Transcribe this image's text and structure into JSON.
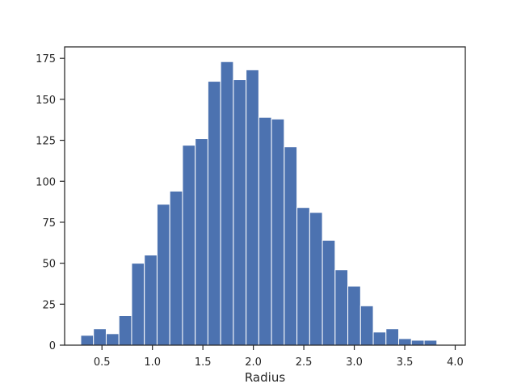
{
  "chart_data": {
    "type": "bar",
    "subtype": "histogram",
    "title": "",
    "xlabel": "Radius",
    "ylabel": "",
    "xlim": [
      0.13,
      4.1
    ],
    "ylim": [
      0,
      182
    ],
    "grid": false,
    "legend": "none",
    "bar_color": "#4c72b0",
    "x_ticks": [
      0.5,
      1.0,
      1.5,
      2.0,
      2.5,
      3.0,
      3.5,
      4.0
    ],
    "x_tick_labels": [
      "0.5",
      "1.0",
      "1.5",
      "2.0",
      "2.5",
      "3.0",
      "3.5",
      "4.0"
    ],
    "y_ticks": [
      0,
      25,
      50,
      75,
      100,
      125,
      150,
      175
    ],
    "y_tick_labels": [
      "0",
      "25",
      "50",
      "75",
      "100",
      "125",
      "150",
      "175"
    ],
    "bin_edges": [
      0.29,
      0.416,
      0.542,
      0.668,
      0.794,
      0.92,
      1.046,
      1.172,
      1.298,
      1.424,
      1.55,
      1.676,
      1.802,
      1.928,
      2.054,
      2.18,
      2.306,
      2.432,
      2.558,
      2.684,
      2.81,
      2.936,
      3.062,
      3.188,
      3.314,
      3.44,
      3.566,
      3.692,
      3.818
    ],
    "counts": [
      6,
      10,
      7,
      18,
      50,
      55,
      86,
      94,
      122,
      126,
      161,
      173,
      162,
      168,
      139,
      138,
      121,
      84,
      81,
      64,
      46,
      36,
      24,
      8,
      10,
      4,
      3,
      3
    ]
  }
}
